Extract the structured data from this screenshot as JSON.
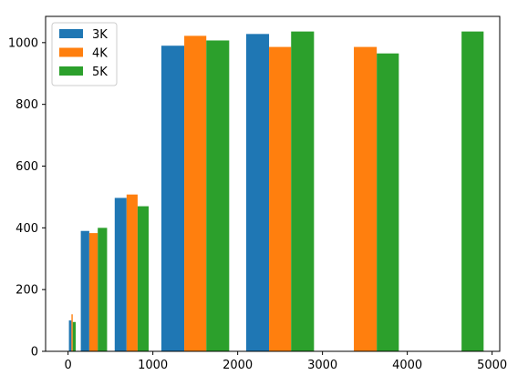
{
  "chart_data": {
    "type": "bar",
    "title": "",
    "xlabel": "",
    "ylabel": "",
    "xlim": [
      -265,
      5090
    ],
    "ylim": [
      0,
      1085
    ],
    "xticks": [
      0,
      1000,
      2000,
      3000,
      4000,
      5000
    ],
    "yticks": [
      0,
      200,
      400,
      600,
      800,
      1000
    ],
    "grid": false,
    "legend_position": "upper left",
    "series": [
      {
        "name": "3K",
        "color": "#1f77b4",
        "bars": [
          {
            "x0": 10,
            "x1": 40,
            "value": 100
          },
          {
            "x0": 150,
            "x1": 250,
            "value": 390
          },
          {
            "x0": 550,
            "x1": 690,
            "value": 497
          },
          {
            "x0": 1100,
            "x1": 1370,
            "value": 990
          },
          {
            "x0": 2100,
            "x1": 2370,
            "value": 1028
          }
        ]
      },
      {
        "name": "4K",
        "color": "#ff7f0e",
        "bars": [
          {
            "x0": 40,
            "x1": 55,
            "value": 120
          },
          {
            "x0": 250,
            "x1": 350,
            "value": 383
          },
          {
            "x0": 690,
            "x1": 820,
            "value": 508
          },
          {
            "x0": 1370,
            "x1": 1630,
            "value": 1022
          },
          {
            "x0": 2370,
            "x1": 2630,
            "value": 986
          },
          {
            "x0": 3370,
            "x1": 3640,
            "value": 986
          }
        ]
      },
      {
        "name": "5K",
        "color": "#2ca02c",
        "bars": [
          {
            "x0": 55,
            "x1": 90,
            "value": 95
          },
          {
            "x0": 350,
            "x1": 460,
            "value": 400
          },
          {
            "x0": 820,
            "x1": 950,
            "value": 470
          },
          {
            "x0": 1630,
            "x1": 1900,
            "value": 1007
          },
          {
            "x0": 2630,
            "x1": 2900,
            "value": 1036
          },
          {
            "x0": 3640,
            "x1": 3900,
            "value": 965
          },
          {
            "x0": 4640,
            "x1": 4900,
            "value": 1036
          }
        ]
      }
    ]
  }
}
